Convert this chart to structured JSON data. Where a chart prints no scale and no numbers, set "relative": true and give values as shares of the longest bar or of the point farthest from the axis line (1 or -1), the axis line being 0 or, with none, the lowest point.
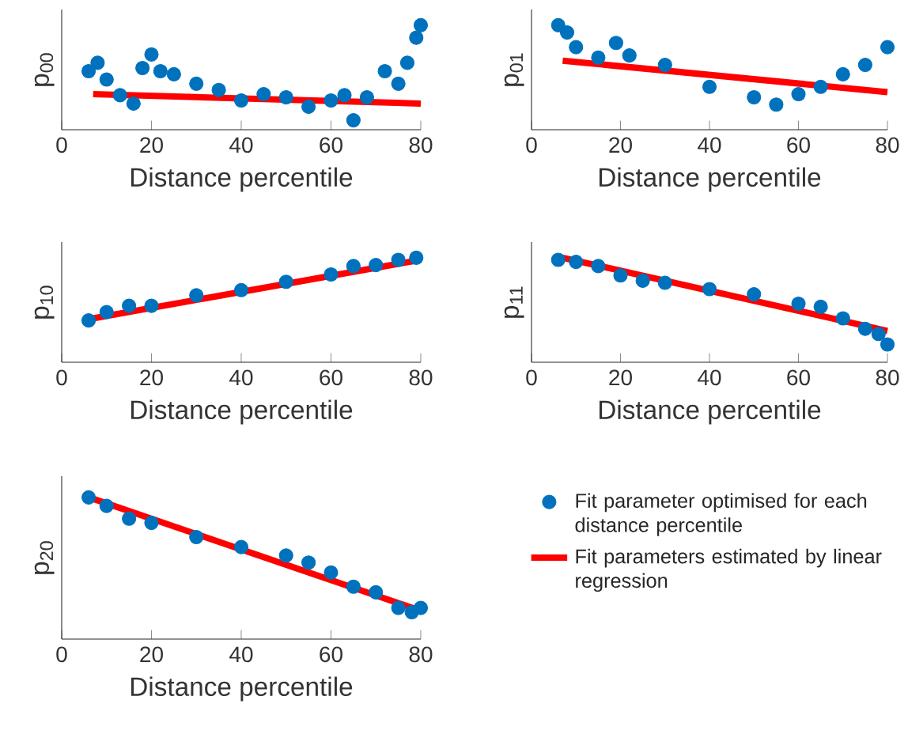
{
  "chart_data": [
    {
      "type": "scatter",
      "relative": true,
      "xlabel": "Distance percentile",
      "ylabel": "p$_{00}$",
      "xlim": [
        0,
        80
      ],
      "xticks": [
        0,
        20,
        40,
        60,
        80
      ],
      "tick_labels": "x",
      "series": [
        {
          "color": "#0072bd",
          "marker": "circle",
          "x": [
            6,
            8,
            10,
            13,
            16,
            18,
            20,
            22,
            25,
            30,
            35,
            40,
            45,
            50,
            55,
            60,
            63,
            65,
            68,
            72,
            75,
            77,
            79,
            80
          ],
          "values": [
            0.56,
            0.64,
            0.48,
            0.33,
            0.25,
            0.59,
            0.72,
            0.56,
            0.53,
            0.44,
            0.38,
            0.28,
            0.34,
            0.31,
            0.22,
            0.28,
            0.33,
            0.09,
            0.31,
            0.56,
            0.44,
            0.64,
            0.88,
            1
          ]
        },
        {
          "type": "line",
          "color": "#ff0000",
          "x": [
            7,
            80
          ],
          "values": [
            0.34,
            0.25
          ]
        }
      ]
    },
    {
      "type": "scatter",
      "relative": true,
      "xlabel": "Distance percentile",
      "ylabel": "p$_{01}$",
      "xlim": [
        0,
        80
      ],
      "xticks": [
        0,
        20,
        40,
        60,
        80
      ],
      "tick_labels": "x",
      "series": [
        {
          "color": "#0072bd",
          "marker": "circle",
          "x": [
            6,
            8,
            10,
            15,
            19,
            22,
            30,
            40,
            50,
            55,
            60,
            65,
            70,
            75,
            80
          ],
          "values": [
            1,
            0.93,
            0.79,
            0.69,
            0.83,
            0.71,
            0.62,
            0.41,
            0.31,
            0.24,
            0.34,
            0.41,
            0.53,
            0.62,
            0.79
          ]
        },
        {
          "type": "line",
          "color": "#ff0000",
          "x": [
            7,
            80
          ],
          "values": [
            0.66,
            0.36
          ]
        }
      ]
    },
    {
      "type": "scatter",
      "relative": true,
      "xlabel": "Distance percentile",
      "ylabel": "p$_{10}$",
      "xlim": [
        0,
        80
      ],
      "xticks": [
        0,
        20,
        40,
        60,
        80
      ],
      "tick_labels": "x",
      "series": [
        {
          "color": "#0072bd",
          "marker": "circle",
          "x": [
            6,
            10,
            15,
            20,
            30,
            40,
            50,
            60,
            65,
            70,
            75,
            79
          ],
          "values": [
            0.4,
            0.48,
            0.54,
            0.54,
            0.64,
            0.69,
            0.77,
            0.84,
            0.92,
            0.93,
            0.98,
            1
          ]
        },
        {
          "type": "line",
          "color": "#ff0000",
          "x": [
            7,
            80
          ],
          "values": [
            0.42,
            0.98
          ]
        }
      ]
    },
    {
      "type": "scatter",
      "relative": true,
      "xlabel": "Distance percentile",
      "ylabel": "p$_{11}$",
      "xlim": [
        0,
        80
      ],
      "xticks": [
        0,
        20,
        40,
        60,
        80
      ],
      "tick_labels": "x",
      "series": [
        {
          "color": "#0072bd",
          "marker": "circle",
          "x": [
            6,
            10,
            15,
            20,
            25,
            30,
            40,
            50,
            60,
            65,
            70,
            75,
            78,
            80
          ],
          "values": [
            0.98,
            0.96,
            0.92,
            0.83,
            0.78,
            0.76,
            0.7,
            0.65,
            0.56,
            0.53,
            0.42,
            0.32,
            0.27,
            0.17
          ]
        },
        {
          "type": "line",
          "color": "#ff0000",
          "x": [
            7,
            80
          ],
          "values": [
            1,
            0.3
          ]
        }
      ]
    },
    {
      "type": "scatter",
      "relative": true,
      "xlabel": "Distance percentile",
      "ylabel": "p$_{20}$",
      "xlim": [
        0,
        80
      ],
      "xticks": [
        0,
        20,
        40,
        60,
        80
      ],
      "tick_labels": "x",
      "legend": "right",
      "series": [
        {
          "name": "Fit parameter optimised for each distance percentile",
          "color": "#0072bd",
          "marker": "circle",
          "x": [
            6,
            10,
            15,
            20,
            30,
            40,
            50,
            55,
            60,
            65,
            70,
            75,
            78,
            80
          ],
          "values": [
            1,
            0.94,
            0.85,
            0.82,
            0.72,
            0.65,
            0.59,
            0.54,
            0.47,
            0.37,
            0.33,
            0.22,
            0.19,
            0.22
          ]
        },
        {
          "type": "line",
          "name": "Fit parameters estimated by linear regression",
          "color": "#ff0000",
          "x": [
            7,
            80
          ],
          "values": [
            0.99,
            0.2
          ]
        }
      ]
    }
  ]
}
